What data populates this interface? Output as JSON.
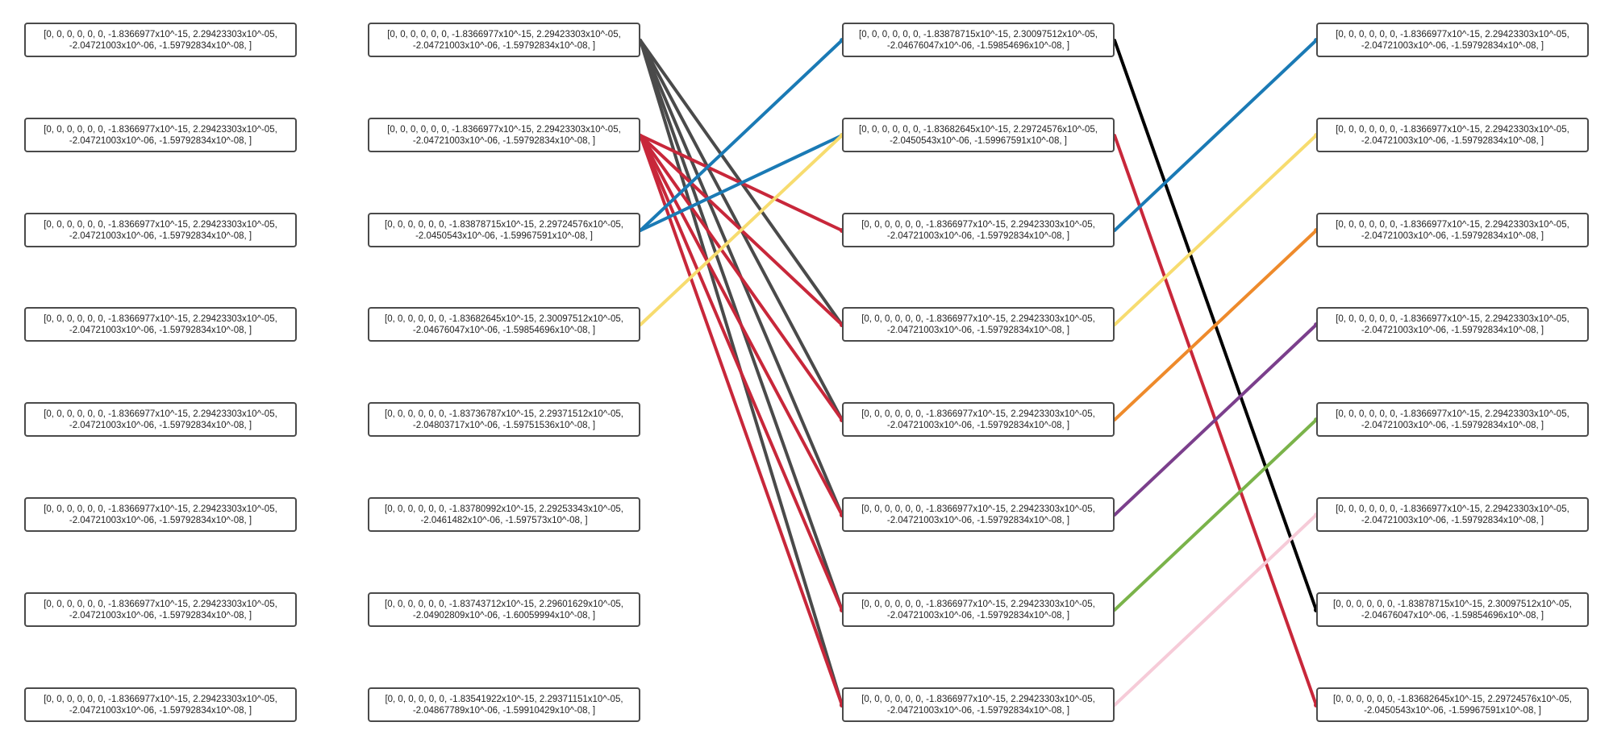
{
  "columns": [
    {
      "name": "column-1",
      "nodes": [
        {
          "line1": "[0, 0, 0, 0, 0, 0, -1.8366977x10^-15, 2.29423303x10^-05,",
          "line2": "-2.04721003x10^-06, -1.59792834x10^-08, ]"
        },
        {
          "line1": "[0, 0, 0, 0, 0, 0, -1.8366977x10^-15, 2.29423303x10^-05,",
          "line2": "-2.04721003x10^-06, -1.59792834x10^-08, ]"
        },
        {
          "line1": "[0, 0, 0, 0, 0, 0, -1.8366977x10^-15, 2.29423303x10^-05,",
          "line2": "-2.04721003x10^-06, -1.59792834x10^-08, ]"
        },
        {
          "line1": "[0, 0, 0, 0, 0, 0, -1.8366977x10^-15, 2.29423303x10^-05,",
          "line2": "-2.04721003x10^-06, -1.59792834x10^-08, ]"
        },
        {
          "line1": "[0, 0, 0, 0, 0, 0, -1.8366977x10^-15, 2.29423303x10^-05,",
          "line2": "-2.04721003x10^-06, -1.59792834x10^-08, ]"
        },
        {
          "line1": "[0, 0, 0, 0, 0, 0, -1.8366977x10^-15, 2.29423303x10^-05,",
          "line2": "-2.04721003x10^-06, -1.59792834x10^-08, ]"
        },
        {
          "line1": "[0, 0, 0, 0, 0, 0, -1.8366977x10^-15, 2.29423303x10^-05,",
          "line2": "-2.04721003x10^-06, -1.59792834x10^-08, ]"
        },
        {
          "line1": "[0, 0, 0, 0, 0, 0, -1.8366977x10^-15, 2.29423303x10^-05,",
          "line2": "-2.04721003x10^-06, -1.59792834x10^-08, ]"
        }
      ]
    },
    {
      "name": "column-2",
      "nodes": [
        {
          "line1": "[0, 0, 0, 0, 0, 0, -1.8366977x10^-15, 2.29423303x10^-05,",
          "line2": "-2.04721003x10^-06, -1.59792834x10^-08, ]"
        },
        {
          "line1": "[0, 0, 0, 0, 0, 0, -1.8366977x10^-15, 2.29423303x10^-05,",
          "line2": "-2.04721003x10^-06, -1.59792834x10^-08, ]"
        },
        {
          "line1": "[0, 0, 0, 0, 0, 0, -1.83878715x10^-15, 2.29724576x10^-05,",
          "line2": "-2.0450543x10^-06, -1.59967591x10^-08, ]"
        },
        {
          "line1": "[0, 0, 0, 0, 0, 0, -1.83682645x10^-15, 2.30097512x10^-05,",
          "line2": "-2.04676047x10^-06, -1.59854696x10^-08, ]"
        },
        {
          "line1": "[0, 0, 0, 0, 0, 0, -1.83736787x10^-15, 2.29371512x10^-05,",
          "line2": "-2.04803717x10^-06, -1.59751536x10^-08, ]"
        },
        {
          "line1": "[0, 0, 0, 0, 0, 0, -1.83780992x10^-15, 2.29253343x10^-05,",
          "line2": "-2.0461482x10^-06, -1.597573x10^-08, ]"
        },
        {
          "line1": "[0, 0, 0, 0, 0, 0, -1.83743712x10^-15, 2.29601629x10^-05,",
          "line2": "-2.04902809x10^-06, -1.60059994x10^-08, ]"
        },
        {
          "line1": "[0, 0, 0, 0, 0, 0, -1.83541922x10^-15, 2.29371151x10^-05,",
          "line2": "-2.04867789x10^-06, -1.59910429x10^-08, ]"
        }
      ]
    },
    {
      "name": "column-3",
      "nodes": [
        {
          "line1": "[0, 0, 0, 0, 0, 0, -1.83878715x10^-15, 2.30097512x10^-05,",
          "line2": "-2.04676047x10^-06, -1.59854696x10^-08, ]"
        },
        {
          "line1": "[0, 0, 0, 0, 0, 0, -1.83682645x10^-15, 2.29724576x10^-05,",
          "line2": "-2.0450543x10^-06, -1.59967591x10^-08, ]"
        },
        {
          "line1": "[0, 0, 0, 0, 0, 0, -1.8366977x10^-15, 2.29423303x10^-05,",
          "line2": "-2.04721003x10^-06, -1.59792834x10^-08, ]"
        },
        {
          "line1": "[0, 0, 0, 0, 0, 0, -1.8366977x10^-15, 2.29423303x10^-05,",
          "line2": "-2.04721003x10^-06, -1.59792834x10^-08, ]"
        },
        {
          "line1": "[0, 0, 0, 0, 0, 0, -1.8366977x10^-15, 2.29423303x10^-05,",
          "line2": "-2.04721003x10^-06, -1.59792834x10^-08, ]"
        },
        {
          "line1": "[0, 0, 0, 0, 0, 0, -1.8366977x10^-15, 2.29423303x10^-05,",
          "line2": "-2.04721003x10^-06, -1.59792834x10^-08, ]"
        },
        {
          "line1": "[0, 0, 0, 0, 0, 0, -1.8366977x10^-15, 2.29423303x10^-05,",
          "line2": "-2.04721003x10^-06, -1.59792834x10^-08, ]"
        },
        {
          "line1": "[0, 0, 0, 0, 0, 0, -1.8366977x10^-15, 2.29423303x10^-05,",
          "line2": "-2.04721003x10^-06, -1.59792834x10^-08, ]"
        }
      ]
    },
    {
      "name": "column-4",
      "nodes": [
        {
          "line1": "[0, 0, 0, 0, 0, 0, -1.8366977x10^-15, 2.29423303x10^-05,",
          "line2": "-2.04721003x10^-06, -1.59792834x10^-08, ]"
        },
        {
          "line1": "[0, 0, 0, 0, 0, 0, -1.8366977x10^-15, 2.29423303x10^-05,",
          "line2": "-2.04721003x10^-06, -1.59792834x10^-08, ]"
        },
        {
          "line1": "[0, 0, 0, 0, 0, 0, -1.8366977x10^-15, 2.29423303x10^-05,",
          "line2": "-2.04721003x10^-06, -1.59792834x10^-08, ]"
        },
        {
          "line1": "[0, 0, 0, 0, 0, 0, -1.8366977x10^-15, 2.29423303x10^-05,",
          "line2": "-2.04721003x10^-06, -1.59792834x10^-08, ]"
        },
        {
          "line1": "[0, 0, 0, 0, 0, 0, -1.8366977x10^-15, 2.29423303x10^-05,",
          "line2": "-2.04721003x10^-06, -1.59792834x10^-08, ]"
        },
        {
          "line1": "[0, 0, 0, 0, 0, 0, -1.8366977x10^-15, 2.29423303x10^-05,",
          "line2": "-2.04721003x10^-06, -1.59792834x10^-08, ]"
        },
        {
          "line1": "[0, 0, 0, 0, 0, 0, -1.83878715x10^-15, 2.30097512x10^-05,",
          "line2": "-2.04676047x10^-06, -1.59854696x10^-08, ]"
        },
        {
          "line1": "[0, 0, 0, 0, 0, 0, -1.83682645x10^-15, 2.29724576x10^-05,",
          "line2": "-2.0450543x10^-06, -1.59967591x10^-08, ]"
        }
      ]
    }
  ],
  "edges": [
    {
      "from": [
        1,
        0
      ],
      "to": [
        2,
        3
      ],
      "color": "#4a4a4a"
    },
    {
      "from": [
        1,
        0
      ],
      "to": [
        2,
        4
      ],
      "color": "#4a4a4a"
    },
    {
      "from": [
        1,
        0
      ],
      "to": [
        2,
        5
      ],
      "color": "#4a4a4a"
    },
    {
      "from": [
        1,
        0
      ],
      "to": [
        2,
        6
      ],
      "color": "#4a4a4a"
    },
    {
      "from": [
        1,
        0
      ],
      "to": [
        2,
        7
      ],
      "color": "#4a4a4a"
    },
    {
      "from": [
        1,
        1
      ],
      "to": [
        2,
        2
      ],
      "color": "#c8273a"
    },
    {
      "from": [
        1,
        1
      ],
      "to": [
        2,
        3
      ],
      "color": "#c8273a"
    },
    {
      "from": [
        1,
        1
      ],
      "to": [
        2,
        4
      ],
      "color": "#c8273a"
    },
    {
      "from": [
        1,
        1
      ],
      "to": [
        2,
        5
      ],
      "color": "#c8273a"
    },
    {
      "from": [
        1,
        1
      ],
      "to": [
        2,
        6
      ],
      "color": "#c8273a"
    },
    {
      "from": [
        1,
        1
      ],
      "to": [
        2,
        7
      ],
      "color": "#c8273a"
    },
    {
      "from": [
        1,
        2
      ],
      "to": [
        2,
        0
      ],
      "color": "#1a7ab5"
    },
    {
      "from": [
        1,
        2
      ],
      "to": [
        2,
        1
      ],
      "color": "#1a7ab5"
    },
    {
      "from": [
        1,
        3
      ],
      "to": [
        2,
        1
      ],
      "color": "#f7dc6f"
    },
    {
      "from": [
        2,
        0
      ],
      "to": [
        3,
        6
      ],
      "color": "#000000"
    },
    {
      "from": [
        2,
        1
      ],
      "to": [
        3,
        7
      ],
      "color": "#c8273a"
    },
    {
      "from": [
        2,
        2
      ],
      "to": [
        3,
        0
      ],
      "color": "#1a7ab5"
    },
    {
      "from": [
        2,
        3
      ],
      "to": [
        3,
        1
      ],
      "color": "#f7dc6f"
    },
    {
      "from": [
        2,
        4
      ],
      "to": [
        3,
        2
      ],
      "color": "#ee8a2b"
    },
    {
      "from": [
        2,
        5
      ],
      "to": [
        3,
        3
      ],
      "color": "#7b3f8c"
    },
    {
      "from": [
        2,
        6
      ],
      "to": [
        3,
        4
      ],
      "color": "#7ab34a"
    },
    {
      "from": [
        2,
        7
      ],
      "to": [
        3,
        5
      ],
      "color": "#f6cbd8"
    }
  ]
}
